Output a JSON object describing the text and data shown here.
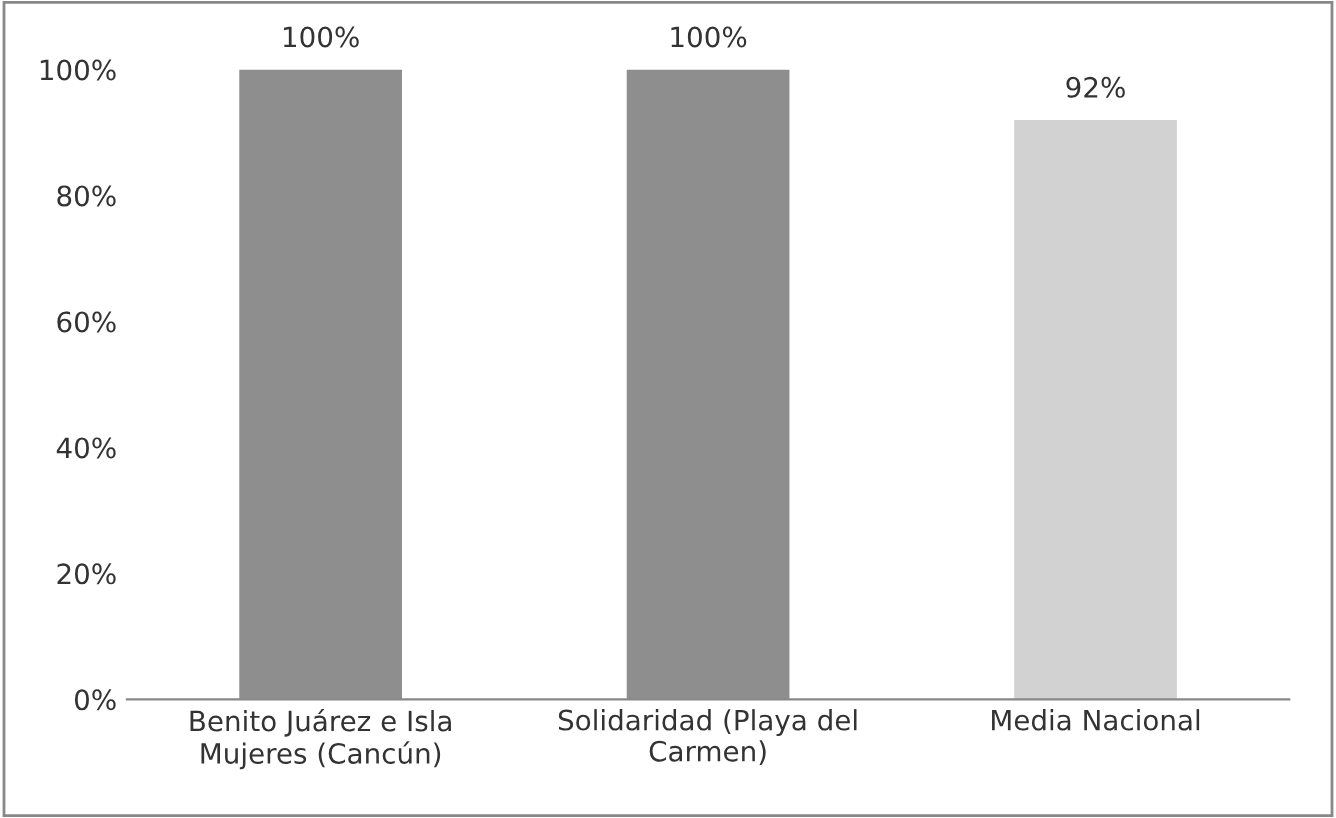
{
  "chart_data": {
    "type": "bar",
    "categories": [
      "Benito Juárez e Isla Mujeres (Cancún)",
      "Solidaridad (Playa del Carmen)",
      "Media Nacional"
    ],
    "values": [
      100,
      100,
      92
    ],
    "colors": [
      "#8e8e8e",
      "#8e8e8e",
      "#d2d2d2"
    ],
    "value_labels": [
      "100%",
      "100%",
      "92%"
    ],
    "ylim": [
      0,
      100
    ],
    "yticks": [
      {
        "value": 0,
        "label": "0%"
      },
      {
        "value": 20,
        "label": "20%"
      },
      {
        "value": 40,
        "label": "40%"
      },
      {
        "value": 60,
        "label": "60%"
      },
      {
        "value": 80,
        "label": "80%"
      },
      {
        "value": 100,
        "label": "100%"
      }
    ],
    "grid": false,
    "legend": false
  }
}
